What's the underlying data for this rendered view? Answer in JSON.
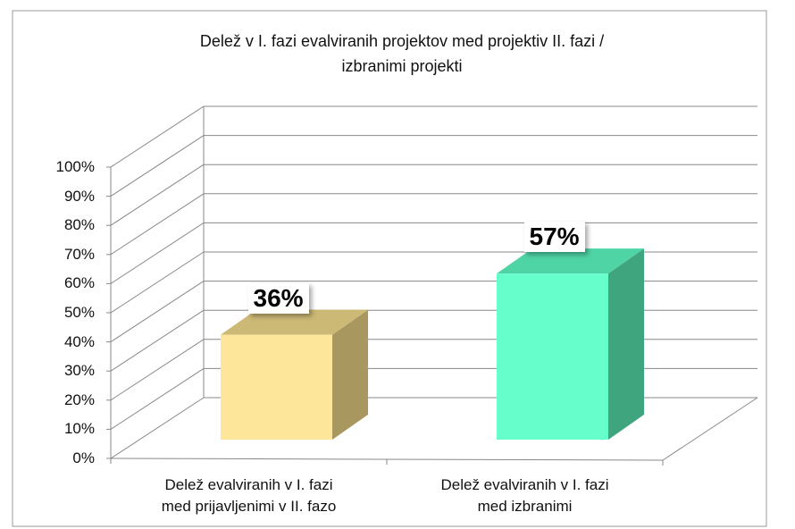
{
  "chart_data": {
    "type": "bar3d",
    "title": "Delež v I. fazi evalviranih projektov med projektiv II. fazi /\nizbranimi projekti",
    "categories": [
      "Delež evalviranih v I. fazi\nmed prijavljenimi v II. fazo",
      "Delež evalviranih v I. fazi\nmed izbranimi"
    ],
    "values": [
      36,
      57
    ],
    "value_labels": [
      "36%",
      "57%"
    ],
    "colors": [
      {
        "front": "#fde59a",
        "side": "#a89860",
        "top": "#cdb976"
      },
      {
        "front": "#66ffcc",
        "side": "#3fa57f",
        "top": "#4fd4a6"
      }
    ],
    "ylim": [
      0,
      100
    ],
    "yticks": [
      {
        "value": 0,
        "label": "0%"
      },
      {
        "value": 10,
        "label": "10%"
      },
      {
        "value": 20,
        "label": "20%"
      },
      {
        "value": 30,
        "label": "30%"
      },
      {
        "value": 40,
        "label": "40%"
      },
      {
        "value": 50,
        "label": "50%"
      },
      {
        "value": 60,
        "label": "60%"
      },
      {
        "value": 70,
        "label": "70%"
      },
      {
        "value": 80,
        "label": "80%"
      },
      {
        "value": 90,
        "label": "90%"
      },
      {
        "value": 100,
        "label": "100%"
      }
    ],
    "grid": true
  }
}
